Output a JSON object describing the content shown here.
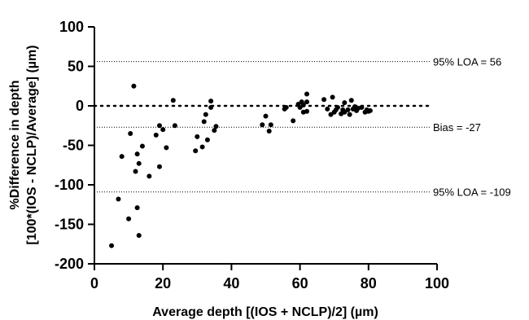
{
  "chart_data": {
    "type": "scatter",
    "title": "",
    "xlabel": "Average depth [(IOS + NCLP)/2] (µm)",
    "ylabel_line1": "%Difference in depth",
    "ylabel_line2": "[100*(IOS - NCLP)/Average] (µm)",
    "xlim": [
      0,
      100
    ],
    "ylim": [
      -200,
      100
    ],
    "xticks": [
      0,
      20,
      40,
      60,
      80,
      100
    ],
    "yticks": [
      100,
      50,
      0,
      -50,
      -100,
      -150,
      -200
    ],
    "grid": false,
    "zero_line": 0,
    "reference_lines": [
      {
        "value": 56,
        "label": "95% LOA = 56",
        "style": "dotted"
      },
      {
        "value": -27,
        "label": "Bias = -27",
        "style": "dotted"
      },
      {
        "value": -109,
        "label": "95% LOA = -109",
        "style": "dotted"
      }
    ],
    "points": [
      [
        5,
        -177
      ],
      [
        7,
        -118
      ],
      [
        8,
        -64
      ],
      [
        10,
        -143
      ],
      [
        10.5,
        -35
      ],
      [
        11.5,
        25
      ],
      [
        12,
        -83
      ],
      [
        12.5,
        -61
      ],
      [
        12.5,
        -129
      ],
      [
        13,
        -164
      ],
      [
        13,
        -73
      ],
      [
        14,
        -51
      ],
      [
        16,
        -89
      ],
      [
        18,
        -37
      ],
      [
        19,
        -77
      ],
      [
        19,
        -25
      ],
      [
        20,
        -30
      ],
      [
        21,
        -53
      ],
      [
        23,
        7
      ],
      [
        23.5,
        -25
      ],
      [
        29.5,
        -57
      ],
      [
        30,
        -39
      ],
      [
        31.5,
        -52
      ],
      [
        32,
        -20
      ],
      [
        32.5,
        -11
      ],
      [
        33,
        -43
      ],
      [
        34,
        6
      ],
      [
        34,
        -2
      ],
      [
        35,
        -31
      ],
      [
        35.5,
        -26
      ],
      [
        49,
        -24
      ],
      [
        50,
        -13
      ],
      [
        51,
        -32
      ],
      [
        51.5,
        -24
      ],
      [
        55.5,
        -4
      ],
      [
        56,
        -2
      ],
      [
        58,
        -19
      ],
      [
        59.5,
        2
      ],
      [
        60,
        -2
      ],
      [
        60.5,
        5
      ],
      [
        61,
        1
      ],
      [
        61,
        -8
      ],
      [
        62,
        5
      ],
      [
        62,
        15
      ],
      [
        62,
        -7
      ],
      [
        67,
        8
      ],
      [
        68,
        -4
      ],
      [
        69,
        -11
      ],
      [
        69.5,
        11
      ],
      [
        70,
        -8
      ],
      [
        70.5,
        -5
      ],
      [
        71,
        -2
      ],
      [
        72,
        -10
      ],
      [
        72.5,
        -5
      ],
      [
        73,
        4
      ],
      [
        73,
        -8
      ],
      [
        74,
        -5
      ],
      [
        74.5,
        -11
      ],
      [
        75,
        7
      ],
      [
        75.5,
        -4
      ],
      [
        76,
        -1
      ],
      [
        76.5,
        -6
      ],
      [
        77,
        -3
      ],
      [
        78,
        -2
      ],
      [
        79,
        -8
      ],
      [
        79.5,
        -5
      ],
      [
        80,
        -7
      ],
      [
        80.5,
        -6
      ]
    ]
  }
}
